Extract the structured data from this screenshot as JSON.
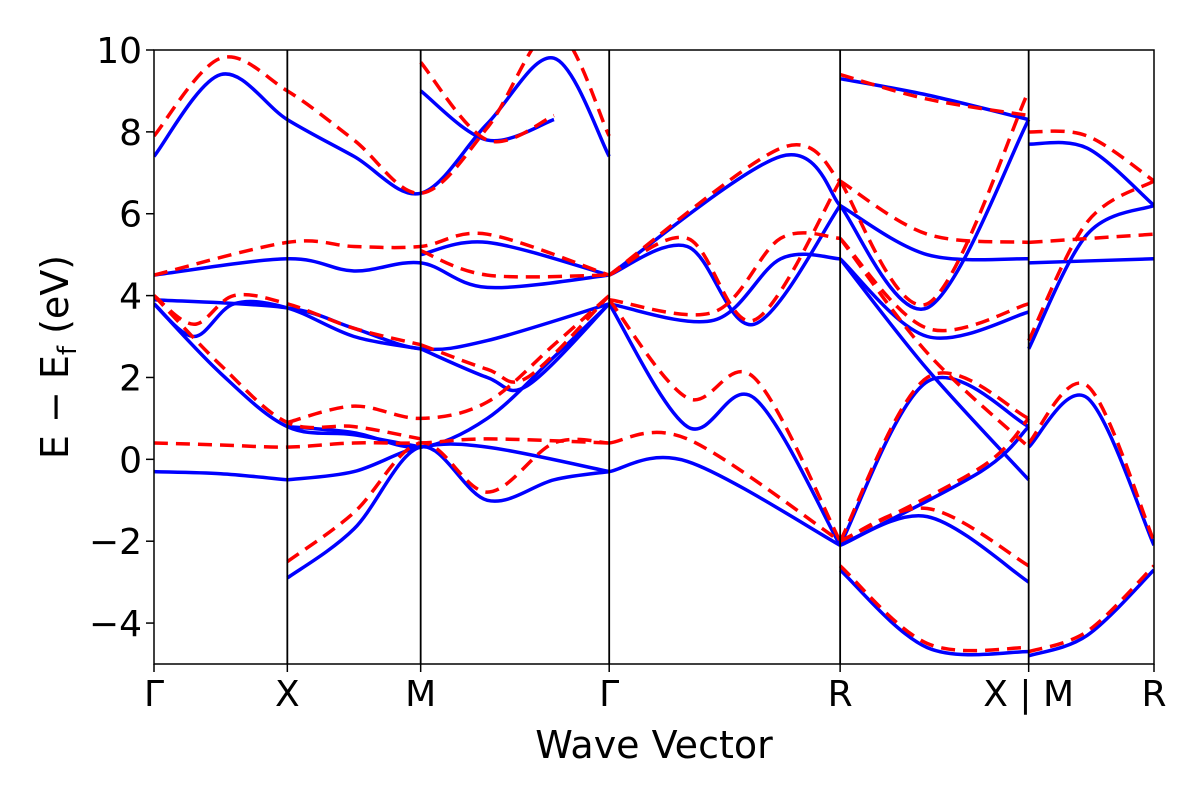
{
  "chart_data": {
    "type": "line",
    "xlabel": "Wave Vector",
    "ylabel": "E − E",
    "ylabel_sub": "f",
    "ylabel_unit": " (eV)",
    "ylim": [
      -5,
      10
    ],
    "yticks": [
      -4,
      -2,
      0,
      2,
      4,
      6,
      8,
      10
    ],
    "ytick_labels": [
      "−4",
      "−2",
      "0",
      "2",
      "4",
      "6",
      "8",
      "10"
    ],
    "xlim": [
      0,
      7.5
    ],
    "kpoints": [
      {
        "label": "Γ",
        "x": 0
      },
      {
        "label": "X",
        "x": 1
      },
      {
        "label": "M",
        "x": 2
      },
      {
        "label": "Γ",
        "x": 3.414
      },
      {
        "label": "R",
        "x": 5.146
      },
      {
        "label": "X | M",
        "x": 6.56
      },
      {
        "label": "R",
        "x": 7.5
      }
    ],
    "grid": false,
    "legend": "none",
    "series": [
      {
        "style": "solid",
        "color": "#0000ff",
        "bands": [
          [
            [
              0,
              -0.3
            ],
            [
              0.5,
              -0.35
            ],
            [
              1,
              -0.5
            ]
          ],
          [
            [
              1,
              -2.9
            ],
            [
              1.5,
              -1.7
            ],
            [
              2,
              0.3
            ],
            [
              2.5,
              -1.0
            ],
            [
              3,
              -0.5
            ],
            [
              3.414,
              -0.3
            ]
          ],
          [
            [
              1,
              -0.5
            ],
            [
              1.5,
              -0.3
            ],
            [
              2,
              0.3
            ],
            [
              2.5,
              0.3
            ],
            [
              3.414,
              -0.3
            ]
          ],
          [
            [
              0,
              3.8
            ],
            [
              0.5,
              2.1
            ],
            [
              1,
              0.8
            ],
            [
              1.5,
              0.6
            ],
            [
              2,
              0.3
            ]
          ],
          [
            [
              1,
              0.8
            ],
            [
              1.5,
              0.65
            ],
            [
              2,
              0.3
            ],
            [
              2.5,
              1.0
            ],
            [
              3,
              2.5
            ],
            [
              3.414,
              3.8
            ]
          ],
          [
            [
              2,
              2.7
            ],
            [
              2.5,
              2.0
            ],
            [
              2.8,
              1.8
            ],
            [
              3.414,
              3.8
            ]
          ],
          [
            [
              0,
              3.8
            ],
            [
              0.3,
              3.0
            ],
            [
              0.6,
              3.8
            ],
            [
              1,
              3.7
            ],
            [
              1.5,
              3.0
            ],
            [
              2,
              2.7
            ]
          ],
          [
            [
              0,
              3.9
            ],
            [
              1,
              3.7
            ],
            [
              1.5,
              3.2
            ],
            [
              2,
              2.7
            ],
            [
              2.5,
              2.9
            ],
            [
              3.414,
              3.8
            ]
          ],
          [
            [
              0,
              4.5
            ],
            [
              1,
              4.9
            ],
            [
              1.5,
              4.6
            ],
            [
              2,
              4.8
            ],
            [
              2.5,
              4.2
            ],
            [
              3.414,
              4.5
            ]
          ],
          [
            [
              2,
              5.0
            ],
            [
              2.5,
              5.3
            ],
            [
              3.414,
              4.5
            ]
          ],
          [
            [
              3.414,
              3.8
            ],
            [
              4,
              0.8
            ],
            [
              4.5,
              1.5
            ],
            [
              5.146,
              -2.1
            ]
          ],
          [
            [
              3.414,
              3.8
            ],
            [
              4.2,
              3.4
            ],
            [
              4.7,
              4.9
            ],
            [
              5.146,
              4.9
            ]
          ],
          [
            [
              3.414,
              4.5
            ],
            [
              4,
              5.2
            ],
            [
              4.5,
              3.3
            ],
            [
              5.146,
              6.2
            ]
          ],
          [
            [
              3.414,
              4.5
            ],
            [
              4.7,
              7.4
            ],
            [
              5.146,
              6.2
            ]
          ],
          [
            [
              3.414,
              -0.3
            ],
            [
              4,
              -0.05
            ],
            [
              5.146,
              -2.1
            ]
          ],
          [
            [
              5.146,
              -2.1
            ],
            [
              5.8,
              -1.4
            ],
            [
              6.56,
              -3.0
            ]
          ],
          [
            [
              5.146,
              -2.1
            ],
            [
              5.8,
              1.9
            ],
            [
              6.56,
              0.8
            ]
          ],
          [
            [
              5.146,
              -2.1
            ],
            [
              6.2,
              -0.3
            ],
            [
              6.56,
              0.8
            ]
          ],
          [
            [
              5.146,
              4.9
            ],
            [
              5.8,
              2.2
            ],
            [
              6.56,
              -0.5
            ]
          ],
          [
            [
              5.146,
              4.9
            ],
            [
              5.8,
              3.0
            ],
            [
              6.56,
              3.6
            ]
          ],
          [
            [
              5.146,
              6.2
            ],
            [
              5.8,
              5.0
            ],
            [
              6.56,
              4.9
            ]
          ],
          [
            [
              5.146,
              6.2
            ],
            [
              5.8,
              3.7
            ],
            [
              6.56,
              8.3
            ]
          ],
          [
            [
              5.146,
              9.3
            ],
            [
              5.8,
              8.9
            ],
            [
              6.56,
              8.3
            ]
          ],
          [
            [
              5.146,
              -2.7
            ],
            [
              5.8,
              -4.6
            ],
            [
              6.56,
              -4.7
            ]
          ],
          [
            [
              6.56,
              0.3
            ],
            [
              7.0,
              1.5
            ],
            [
              7.5,
              -2.1
            ]
          ],
          [
            [
              6.56,
              2.7
            ],
            [
              7.0,
              5.5
            ],
            [
              7.5,
              6.2
            ]
          ],
          [
            [
              6.56,
              4.8
            ],
            [
              7.5,
              4.9
            ]
          ],
          [
            [
              6.56,
              7.7
            ],
            [
              7.0,
              7.6
            ],
            [
              7.5,
              6.2
            ]
          ],
          [
            [
              6.56,
              -4.8
            ],
            [
              7.0,
              -4.3
            ],
            [
              7.5,
              -2.7
            ]
          ],
          [
            [
              0,
              7.4
            ],
            [
              0.5,
              9.4
            ],
            [
              1,
              8.3
            ],
            [
              1.5,
              7.4
            ],
            [
              2,
              6.5
            ],
            [
              2.5,
              8.2
            ],
            [
              3,
              9.8
            ],
            [
              3.414,
              7.4
            ]
          ],
          [
            [
              2,
              9.0
            ],
            [
              2.5,
              7.8
            ],
            [
              3,
              8.3
            ]
          ]
        ]
      },
      {
        "style": "dashed",
        "color": "#ff0000",
        "bands": [
          [
            [
              0,
              0.4
            ],
            [
              0.5,
              0.35
            ],
            [
              1,
              0.3
            ],
            [
              1.5,
              0.4
            ],
            [
              2,
              0.4
            ],
            [
              2.5,
              0.5
            ],
            [
              3.414,
              0.4
            ]
          ],
          [
            [
              1,
              -2.5
            ],
            [
              1.5,
              -1.3
            ],
            [
              2,
              0.4
            ],
            [
              2.5,
              -0.8
            ],
            [
              3,
              0.4
            ],
            [
              3.414,
              0.4
            ]
          ],
          [
            [
              0,
              4.0
            ],
            [
              0.5,
              2.3
            ],
            [
              1,
              0.9
            ],
            [
              1.5,
              0.8
            ],
            [
              2,
              0.5
            ]
          ],
          [
            [
              1,
              0.9
            ],
            [
              1.5,
              1.3
            ],
            [
              2,
              1.0
            ],
            [
              2.5,
              1.4
            ],
            [
              3,
              2.8
            ],
            [
              3.414,
              4.0
            ]
          ],
          [
            [
              2,
              2.8
            ],
            [
              2.5,
              2.2
            ],
            [
              2.8,
              2.0
            ],
            [
              3.414,
              4.0
            ]
          ],
          [
            [
              0,
              4.0
            ],
            [
              0.3,
              3.3
            ],
            [
              0.6,
              4.0
            ],
            [
              1,
              3.8
            ],
            [
              1.5,
              3.2
            ],
            [
              2,
              2.8
            ]
          ],
          [
            [
              0,
              4.5
            ],
            [
              1,
              5.3
            ],
            [
              1.5,
              5.2
            ],
            [
              2,
              5.2
            ],
            [
              2.5,
              5.5
            ],
            [
              3.414,
              4.5
            ]
          ],
          [
            [
              2,
              5.1
            ],
            [
              2.5,
              4.5
            ],
            [
              3.414,
              4.5
            ]
          ],
          [
            [
              3.414,
              3.9
            ],
            [
              4,
              1.5
            ],
            [
              4.5,
              2.0
            ],
            [
              5.146,
              -2.0
            ]
          ],
          [
            [
              3.414,
              3.9
            ],
            [
              4.2,
              3.6
            ],
            [
              4.7,
              5.4
            ],
            [
              5.146,
              5.4
            ]
          ],
          [
            [
              3.414,
              4.5
            ],
            [
              4,
              5.4
            ],
            [
              4.5,
              3.4
            ],
            [
              5.146,
              6.8
            ]
          ],
          [
            [
              3.414,
              4.5
            ],
            [
              4.7,
              7.6
            ],
            [
              5.146,
              6.8
            ]
          ],
          [
            [
              3.414,
              0.4
            ],
            [
              4,
              0.5
            ],
            [
              5.146,
              -2.0
            ]
          ],
          [
            [
              5.146,
              -2.0
            ],
            [
              5.8,
              -1.2
            ],
            [
              6.56,
              -2.6
            ]
          ],
          [
            [
              5.146,
              -2.0
            ],
            [
              5.8,
              2.0
            ],
            [
              6.56,
              1.0
            ]
          ],
          [
            [
              5.146,
              -2.0
            ],
            [
              6.2,
              -0.2
            ],
            [
              6.56,
              1.0
            ]
          ],
          [
            [
              5.146,
              5.4
            ],
            [
              5.8,
              2.6
            ],
            [
              6.56,
              0.3
            ]
          ],
          [
            [
              5.146,
              5.4
            ],
            [
              5.8,
              3.2
            ],
            [
              6.56,
              3.8
            ]
          ],
          [
            [
              5.146,
              6.8
            ],
            [
              5.8,
              5.5
            ],
            [
              6.56,
              5.3
            ]
          ],
          [
            [
              5.146,
              6.8
            ],
            [
              5.8,
              3.8
            ],
            [
              6.56,
              9.0
            ]
          ],
          [
            [
              5.146,
              9.4
            ],
            [
              5.8,
              8.8
            ],
            [
              6.56,
              8.4
            ]
          ],
          [
            [
              5.146,
              -2.6
            ],
            [
              5.8,
              -4.5
            ],
            [
              6.56,
              -4.6
            ]
          ],
          [
            [
              6.56,
              0.4
            ],
            [
              7.0,
              1.8
            ],
            [
              7.5,
              -2.0
            ]
          ],
          [
            [
              6.56,
              2.9
            ],
            [
              7.0,
              5.8
            ],
            [
              7.5,
              6.8
            ]
          ],
          [
            [
              6.56,
              5.3
            ],
            [
              7.5,
              5.5
            ]
          ],
          [
            [
              6.56,
              8.0
            ],
            [
              7.0,
              7.9
            ],
            [
              7.5,
              6.8
            ]
          ],
          [
            [
              6.56,
              -4.7
            ],
            [
              7.0,
              -4.2
            ],
            [
              7.5,
              -2.6
            ]
          ],
          [
            [
              0,
              7.9
            ],
            [
              0.5,
              9.8
            ],
            [
              1,
              9.0
            ],
            [
              1.5,
              7.8
            ],
            [
              2,
              6.5
            ],
            [
              2.5,
              8.1
            ],
            [
              3,
              10.5
            ],
            [
              3.414,
              7.9
            ]
          ],
          [
            [
              2,
              9.7
            ],
            [
              2.5,
              7.8
            ],
            [
              3,
              8.4
            ]
          ]
        ]
      }
    ]
  }
}
